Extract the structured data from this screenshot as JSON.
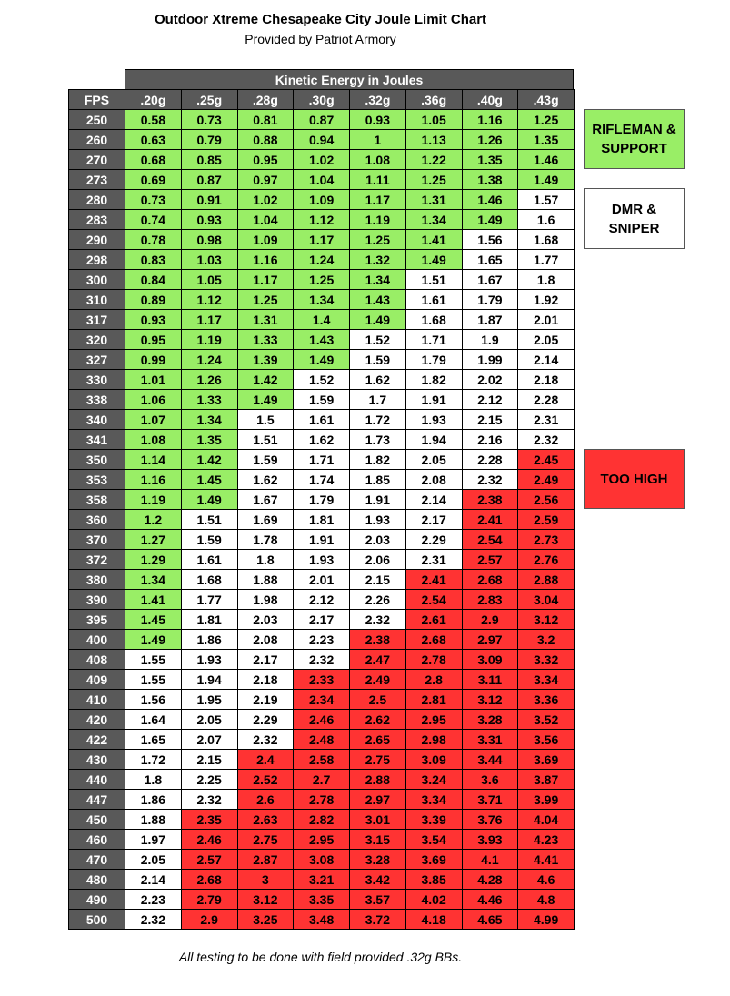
{
  "header": {
    "title": "Outdoor Xtreme Chesapeake City Joule Limit Chart",
    "subtitle": "Provided by Patriot Armory"
  },
  "table": {
    "group_header": "Kinetic Energy in Joules",
    "row_header": "FPS",
    "columns": [
      ".20g",
      ".25g",
      ".28g",
      ".30g",
      ".32g",
      ".36g",
      ".40g",
      ".43g"
    ],
    "rows": [
      {
        "fps": 250,
        "values": [
          0.58,
          0.73,
          0.81,
          0.87,
          0.93,
          1.05,
          1.16,
          1.25
        ],
        "colors": [
          "#9e6",
          "#9e6",
          "#9e6",
          "#9e6",
          "#9e6",
          "#9e6",
          "#9e6",
          "#9e6"
        ]
      },
      {
        "fps": 260,
        "values": [
          0.63,
          0.79,
          0.88,
          0.94,
          1,
          1.13,
          1.26,
          1.35
        ],
        "colors": [
          "#9e6",
          "#9e6",
          "#9e6",
          "#9e6",
          "#9e6",
          "#9e6",
          "#9e6",
          "#9e6"
        ]
      },
      {
        "fps": 270,
        "values": [
          0.68,
          0.85,
          0.95,
          1.02,
          1.08,
          1.22,
          1.35,
          1.46
        ],
        "colors": [
          "#9e6",
          "#9e6",
          "#9e6",
          "#9e6",
          "#9e6",
          "#9e6",
          "#9e6",
          "#9e6"
        ]
      },
      {
        "fps": 273,
        "values": [
          0.69,
          0.87,
          0.97,
          1.04,
          1.11,
          1.25,
          1.38,
          1.49
        ],
        "colors": [
          "#9e6",
          "#9e6",
          "#9e6",
          "#9e6",
          "#9e6",
          "#9e6",
          "#9e6",
          "#9e6"
        ]
      },
      {
        "fps": 280,
        "values": [
          0.73,
          0.91,
          1.02,
          1.09,
          1.17,
          1.31,
          1.46,
          1.57
        ],
        "colors": [
          "#9e6",
          "#9e6",
          "#9e6",
          "#9e6",
          "#9e6",
          "#9e6",
          "#9e6",
          "#fff"
        ]
      },
      {
        "fps": 283,
        "values": [
          0.74,
          0.93,
          1.04,
          1.12,
          1.19,
          1.34,
          1.49,
          1.6
        ],
        "colors": [
          "#9e6",
          "#9e6",
          "#9e6",
          "#9e6",
          "#9e6",
          "#9e6",
          "#9e6",
          "#fff"
        ]
      },
      {
        "fps": 290,
        "values": [
          0.78,
          0.98,
          1.09,
          1.17,
          1.25,
          1.41,
          1.56,
          1.68
        ],
        "colors": [
          "#9e6",
          "#9e6",
          "#9e6",
          "#9e6",
          "#9e6",
          "#9e6",
          "#fff",
          "#fff"
        ]
      },
      {
        "fps": 298,
        "values": [
          0.83,
          1.03,
          1.16,
          1.24,
          1.32,
          1.49,
          1.65,
          1.77
        ],
        "colors": [
          "#9e6",
          "#9e6",
          "#9e6",
          "#9e6",
          "#9e6",
          "#9e6",
          "#fff",
          "#fff"
        ]
      },
      {
        "fps": 300,
        "values": [
          0.84,
          1.05,
          1.17,
          1.25,
          1.34,
          1.51,
          1.67,
          1.8
        ],
        "colors": [
          "#9e6",
          "#9e6",
          "#9e6",
          "#9e6",
          "#9e6",
          "#fff",
          "#fff",
          "#fff"
        ]
      },
      {
        "fps": 310,
        "values": [
          0.89,
          1.12,
          1.25,
          1.34,
          1.43,
          1.61,
          1.79,
          1.92
        ],
        "colors": [
          "#9e6",
          "#9e6",
          "#9e6",
          "#9e6",
          "#9e6",
          "#fff",
          "#fff",
          "#fff"
        ]
      },
      {
        "fps": 317,
        "values": [
          0.93,
          1.17,
          1.31,
          1.4,
          1.49,
          1.68,
          1.87,
          2.01
        ],
        "colors": [
          "#9e6",
          "#9e6",
          "#9e6",
          "#9e6",
          "#9e6",
          "#fff",
          "#fff",
          "#fff"
        ]
      },
      {
        "fps": 320,
        "values": [
          0.95,
          1.19,
          1.33,
          1.43,
          1.52,
          1.71,
          1.9,
          2.05
        ],
        "colors": [
          "#9e6",
          "#9e6",
          "#9e6",
          "#9e6",
          "#fff",
          "#fff",
          "#fff",
          "#fff"
        ]
      },
      {
        "fps": 327,
        "values": [
          0.99,
          1.24,
          1.39,
          1.49,
          1.59,
          1.79,
          1.99,
          2.14
        ],
        "colors": [
          "#9e6",
          "#9e6",
          "#9e6",
          "#9e6",
          "#fff",
          "#fff",
          "#fff",
          "#fff"
        ]
      },
      {
        "fps": 330,
        "values": [
          1.01,
          1.26,
          1.42,
          1.52,
          1.62,
          1.82,
          2.02,
          2.18
        ],
        "colors": [
          "#9e6",
          "#9e6",
          "#9e6",
          "#fff",
          "#fff",
          "#fff",
          "#fff",
          "#fff"
        ]
      },
      {
        "fps": 338,
        "values": [
          1.06,
          1.33,
          1.49,
          1.59,
          1.7,
          1.91,
          2.12,
          2.28
        ],
        "colors": [
          "#9e6",
          "#9e6",
          "#9e6",
          "#fff",
          "#fff",
          "#fff",
          "#fff",
          "#fff"
        ]
      },
      {
        "fps": 340,
        "values": [
          1.07,
          1.34,
          1.5,
          1.61,
          1.72,
          1.93,
          2.15,
          2.31
        ],
        "colors": [
          "#9e6",
          "#9e6",
          "#fff",
          "#fff",
          "#fff",
          "#fff",
          "#fff",
          "#fff"
        ]
      },
      {
        "fps": 341,
        "values": [
          1.08,
          1.35,
          1.51,
          1.62,
          1.73,
          1.94,
          2.16,
          2.32
        ],
        "colors": [
          "#9e6",
          "#9e6",
          "#fff",
          "#fff",
          "#fff",
          "#fff",
          "#fff",
          "#fff"
        ]
      },
      {
        "fps": 350,
        "values": [
          1.14,
          1.42,
          1.59,
          1.71,
          1.82,
          2.05,
          2.28,
          2.45
        ],
        "colors": [
          "#9e6",
          "#9e6",
          "#fff",
          "#fff",
          "#fff",
          "#fff",
          "#fff",
          "#f33"
        ]
      },
      {
        "fps": 353,
        "values": [
          1.16,
          1.45,
          1.62,
          1.74,
          1.85,
          2.08,
          2.32,
          2.49
        ],
        "colors": [
          "#9e6",
          "#9e6",
          "#fff",
          "#fff",
          "#fff",
          "#fff",
          "#fff",
          "#f33"
        ]
      },
      {
        "fps": 358,
        "values": [
          1.19,
          1.49,
          1.67,
          1.79,
          1.91,
          2.14,
          2.38,
          2.56
        ],
        "colors": [
          "#9e6",
          "#9e6",
          "#fff",
          "#fff",
          "#fff",
          "#fff",
          "#f33",
          "#f33"
        ]
      },
      {
        "fps": 360,
        "values": [
          1.2,
          1.51,
          1.69,
          1.81,
          1.93,
          2.17,
          2.41,
          2.59
        ],
        "colors": [
          "#9e6",
          "#fff",
          "#fff",
          "#fff",
          "#fff",
          "#fff",
          "#f33",
          "#f33"
        ]
      },
      {
        "fps": 370,
        "values": [
          1.27,
          1.59,
          1.78,
          1.91,
          2.03,
          2.29,
          2.54,
          2.73
        ],
        "colors": [
          "#9e6",
          "#fff",
          "#fff",
          "#fff",
          "#fff",
          "#fff",
          "#f33",
          "#f33"
        ]
      },
      {
        "fps": 372,
        "values": [
          1.29,
          1.61,
          1.8,
          1.93,
          2.06,
          2.31,
          2.57,
          2.76
        ],
        "colors": [
          "#9e6",
          "#fff",
          "#fff",
          "#fff",
          "#fff",
          "#fff",
          "#f33",
          "#f33"
        ]
      },
      {
        "fps": 380,
        "values": [
          1.34,
          1.68,
          1.88,
          2.01,
          2.15,
          2.41,
          2.68,
          2.88
        ],
        "colors": [
          "#9e6",
          "#fff",
          "#fff",
          "#fff",
          "#fff",
          "#f33",
          "#f33",
          "#f33"
        ]
      },
      {
        "fps": 390,
        "values": [
          1.41,
          1.77,
          1.98,
          2.12,
          2.26,
          2.54,
          2.83,
          3.04
        ],
        "colors": [
          "#9e6",
          "#fff",
          "#fff",
          "#fff",
          "#fff",
          "#f33",
          "#f33",
          "#f33"
        ]
      },
      {
        "fps": 395,
        "values": [
          1.45,
          1.81,
          2.03,
          2.17,
          2.32,
          2.61,
          2.9,
          3.12
        ],
        "colors": [
          "#9e6",
          "#fff",
          "#fff",
          "#fff",
          "#fff",
          "#f33",
          "#f33",
          "#f33"
        ]
      },
      {
        "fps": 400,
        "values": [
          1.49,
          1.86,
          2.08,
          2.23,
          2.38,
          2.68,
          2.97,
          3.2
        ],
        "colors": [
          "#9e6",
          "#fff",
          "#fff",
          "#fff",
          "#f33",
          "#f33",
          "#f33",
          "#f33"
        ]
      },
      {
        "fps": 408,
        "values": [
          1.55,
          1.93,
          2.17,
          2.32,
          2.47,
          2.78,
          3.09,
          3.32
        ],
        "colors": [
          "#fff",
          "#fff",
          "#fff",
          "#fff",
          "#f33",
          "#f33",
          "#f33",
          "#f33"
        ]
      },
      {
        "fps": 409,
        "values": [
          1.55,
          1.94,
          2.18,
          2.33,
          2.49,
          2.8,
          3.11,
          3.34
        ],
        "colors": [
          "#fff",
          "#fff",
          "#fff",
          "#f33",
          "#f33",
          "#f33",
          "#f33",
          "#f33"
        ]
      },
      {
        "fps": 410,
        "values": [
          1.56,
          1.95,
          2.19,
          2.34,
          2.5,
          2.81,
          3.12,
          3.36
        ],
        "colors": [
          "#fff",
          "#fff",
          "#fff",
          "#f33",
          "#f33",
          "#f33",
          "#f33",
          "#f33"
        ]
      },
      {
        "fps": 420,
        "values": [
          1.64,
          2.05,
          2.29,
          2.46,
          2.62,
          2.95,
          3.28,
          3.52
        ],
        "colors": [
          "#fff",
          "#fff",
          "#fff",
          "#f33",
          "#f33",
          "#f33",
          "#f33",
          "#f33"
        ]
      },
      {
        "fps": 422,
        "values": [
          1.65,
          2.07,
          2.32,
          2.48,
          2.65,
          2.98,
          3.31,
          3.56
        ],
        "colors": [
          "#fff",
          "#fff",
          "#fff",
          "#f33",
          "#f33",
          "#f33",
          "#f33",
          "#f33"
        ]
      },
      {
        "fps": 430,
        "values": [
          1.72,
          2.15,
          2.4,
          2.58,
          2.75,
          3.09,
          3.44,
          3.69
        ],
        "colors": [
          "#fff",
          "#fff",
          "#f33",
          "#f33",
          "#f33",
          "#f33",
          "#f33",
          "#f33"
        ]
      },
      {
        "fps": 440,
        "values": [
          1.8,
          2.25,
          2.52,
          2.7,
          2.88,
          3.24,
          3.6,
          3.87
        ],
        "colors": [
          "#fff",
          "#fff",
          "#f33",
          "#f33",
          "#f33",
          "#f33",
          "#f33",
          "#f33"
        ]
      },
      {
        "fps": 447,
        "values": [
          1.86,
          2.32,
          2.6,
          2.78,
          2.97,
          3.34,
          3.71,
          3.99
        ],
        "colors": [
          "#fff",
          "#fff",
          "#f33",
          "#f33",
          "#f33",
          "#f33",
          "#f33",
          "#f33"
        ]
      },
      {
        "fps": 450,
        "values": [
          1.88,
          2.35,
          2.63,
          2.82,
          3.01,
          3.39,
          3.76,
          4.04
        ],
        "colors": [
          "#fff",
          "#f33",
          "#f33",
          "#f33",
          "#f33",
          "#f33",
          "#f33",
          "#f33"
        ]
      },
      {
        "fps": 460,
        "values": [
          1.97,
          2.46,
          2.75,
          2.95,
          3.15,
          3.54,
          3.93,
          4.23
        ],
        "colors": [
          "#fff",
          "#f33",
          "#f33",
          "#f33",
          "#f33",
          "#f33",
          "#f33",
          "#f33"
        ]
      },
      {
        "fps": 470,
        "values": [
          2.05,
          2.57,
          2.87,
          3.08,
          3.28,
          3.69,
          4.1,
          4.41
        ],
        "colors": [
          "#fff",
          "#f33",
          "#f33",
          "#f33",
          "#f33",
          "#f33",
          "#f33",
          "#f33"
        ]
      },
      {
        "fps": 480,
        "values": [
          2.14,
          2.68,
          3,
          3.21,
          3.42,
          3.85,
          4.28,
          4.6
        ],
        "colors": [
          "#fff",
          "#f33",
          "#f33",
          "#f33",
          "#f33",
          "#f33",
          "#f33",
          "#f33"
        ]
      },
      {
        "fps": 490,
        "values": [
          2.23,
          2.79,
          3.12,
          3.35,
          3.57,
          4.02,
          4.46,
          4.8
        ],
        "colors": [
          "#fff",
          "#f33",
          "#f33",
          "#f33",
          "#f33",
          "#f33",
          "#f33",
          "#f33"
        ]
      },
      {
        "fps": 500,
        "values": [
          2.32,
          2.9,
          3.25,
          3.48,
          3.72,
          4.18,
          4.65,
          4.99
        ],
        "colors": [
          "#fff",
          "#f33",
          "#f33",
          "#f33",
          "#f33",
          "#f33",
          "#f33",
          "#f33"
        ]
      }
    ]
  },
  "legend": [
    {
      "label": "RIFLEMAN & SUPPORT",
      "color": "#9e6"
    },
    {
      "label": "DMR & SNIPER",
      "color": "#fff"
    },
    {
      "label": "TOO HIGH",
      "color": "#f33"
    }
  ],
  "footer": "All testing to be done with field provided .32g BBs."
}
